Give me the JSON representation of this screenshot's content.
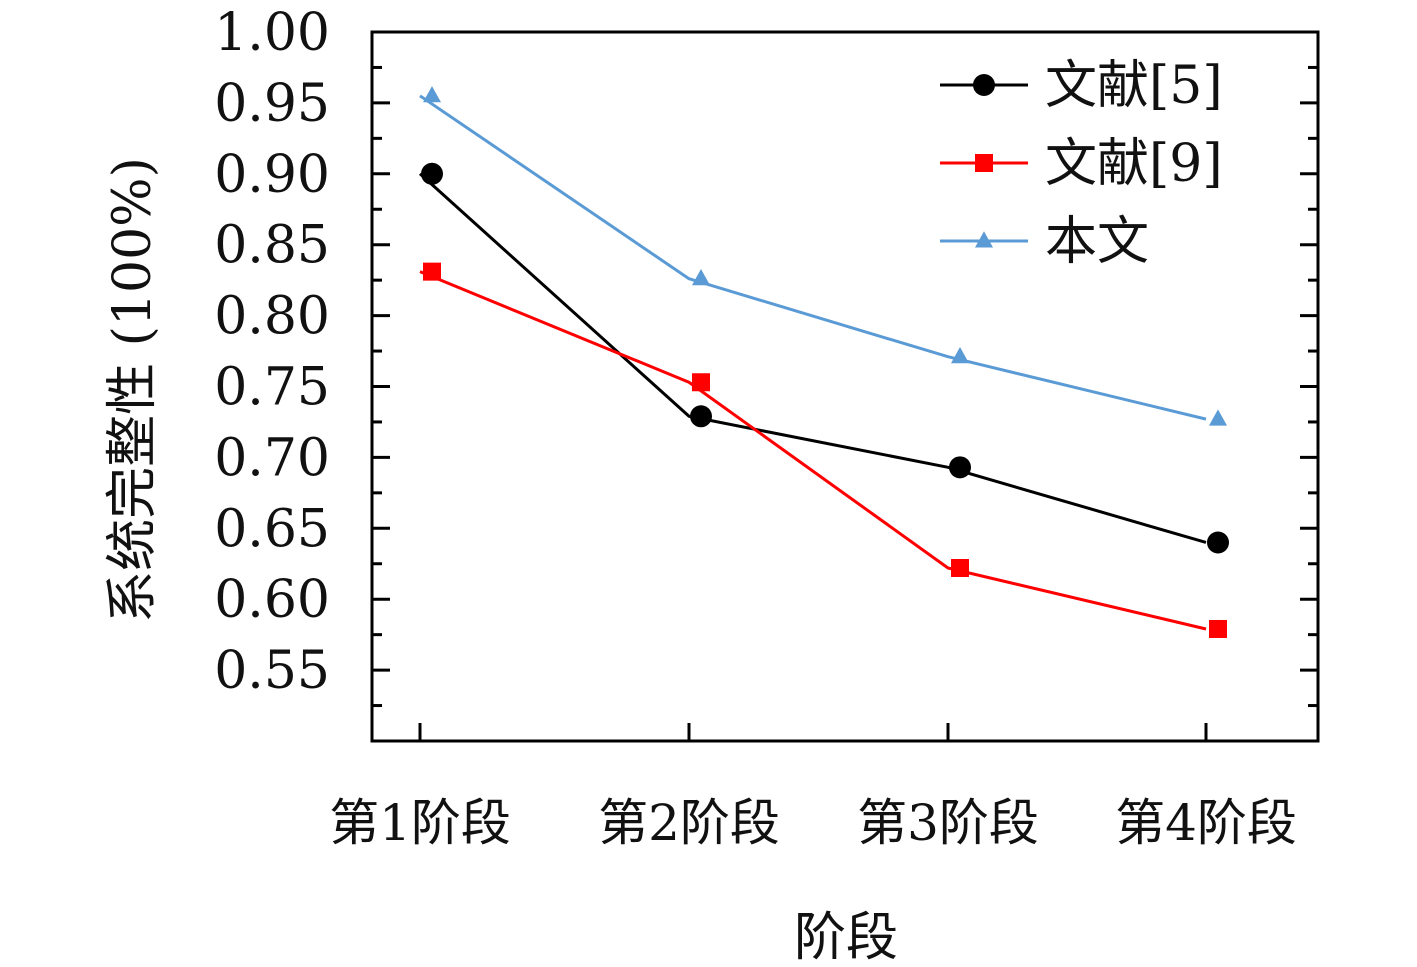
{
  "chart_data": {
    "type": "line",
    "xlabel": "阶段",
    "ylabel": "系统完整性 (100%)",
    "categories": [
      "第1阶段",
      "第2阶段",
      "第3阶段",
      "第4阶段"
    ],
    "ylim": [
      0.5,
      1.0
    ],
    "yticks": [
      "0.55",
      "0.60",
      "0.65",
      "0.70",
      "0.75",
      "0.80",
      "0.85",
      "0.90",
      "0.95",
      "1.00"
    ],
    "grid": false,
    "legend_position": "top-right",
    "series": [
      {
        "name": "文献[5]",
        "color": "#000000",
        "marker": "circle",
        "values": [
          0.9,
          0.729,
          0.693,
          0.64
        ]
      },
      {
        "name": "文献[9]",
        "color": "#ff0000",
        "marker": "square",
        "values": [
          0.831,
          0.753,
          0.622,
          0.579
        ]
      },
      {
        "name": "本文",
        "color": "#5b9bd5",
        "marker": "triangle",
        "values": [
          0.955,
          0.826,
          0.771,
          0.727
        ]
      }
    ]
  }
}
